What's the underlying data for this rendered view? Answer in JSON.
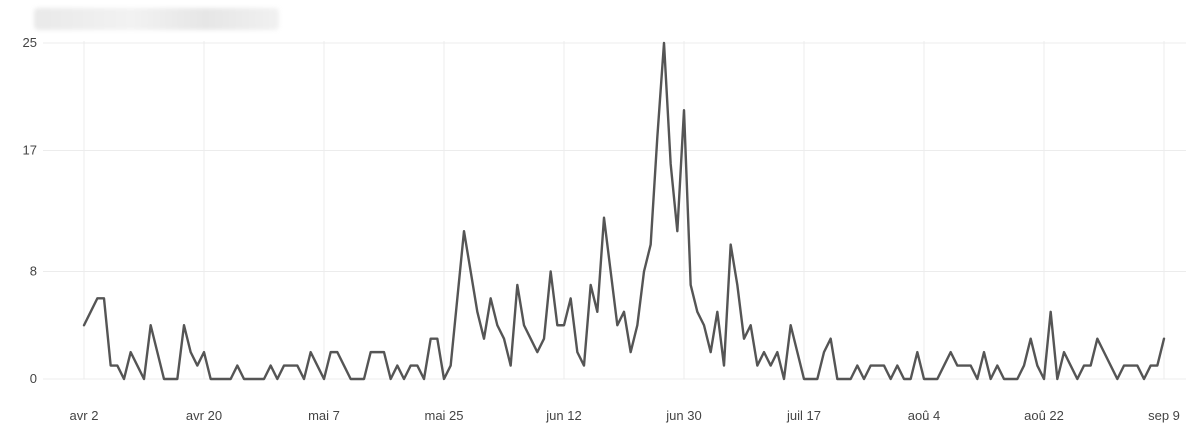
{
  "chart_data": {
    "type": "line",
    "ylim": [
      0,
      25
    ],
    "y_ticks": [
      "25",
      "17",
      "8",
      "0"
    ],
    "x_tick_labels": [
      "avr 2",
      "avr 20",
      "mai 7",
      "mai 25",
      "jun 12",
      "jun 30",
      "juil 17",
      "aoû 4",
      "aoû 22",
      "sep 9"
    ],
    "grid": "on",
    "series": [
      {
        "color": "#555555",
        "values": [
          4,
          5,
          6,
          6,
          1,
          1,
          0,
          2,
          1,
          0,
          4,
          2,
          0,
          0,
          0,
          4,
          2,
          1,
          2,
          0,
          0,
          0,
          0,
          1,
          0,
          0,
          0,
          0,
          1,
          0,
          1,
          1,
          1,
          0,
          2,
          1,
          0,
          2,
          2,
          1,
          0,
          0,
          0,
          2,
          2,
          2,
          0,
          1,
          0,
          1,
          1,
          0,
          3,
          3,
          0,
          1,
          6,
          11,
          8,
          5,
          3,
          6,
          4,
          3,
          1,
          7,
          4,
          3,
          2,
          3,
          8,
          4,
          4,
          6,
          2,
          1,
          7,
          5,
          12,
          8,
          4,
          5,
          2,
          4,
          8,
          10,
          18,
          25,
          16,
          11,
          20,
          7,
          5,
          4,
          2,
          5,
          1,
          10,
          7,
          3,
          4,
          1,
          2,
          1,
          2,
          0,
          4,
          2,
          0,
          0,
          0,
          2,
          3,
          0,
          0,
          0,
          1,
          0,
          1,
          1,
          1,
          0,
          1,
          0,
          0,
          2,
          0,
          0,
          0,
          1,
          2,
          1,
          1,
          1,
          0,
          2,
          0,
          1,
          0,
          0,
          0,
          1,
          3,
          1,
          0,
          5,
          0,
          2,
          1,
          0,
          1,
          1,
          3,
          2,
          1,
          0,
          1,
          1,
          1,
          0,
          1,
          1,
          3
        ]
      }
    ]
  }
}
